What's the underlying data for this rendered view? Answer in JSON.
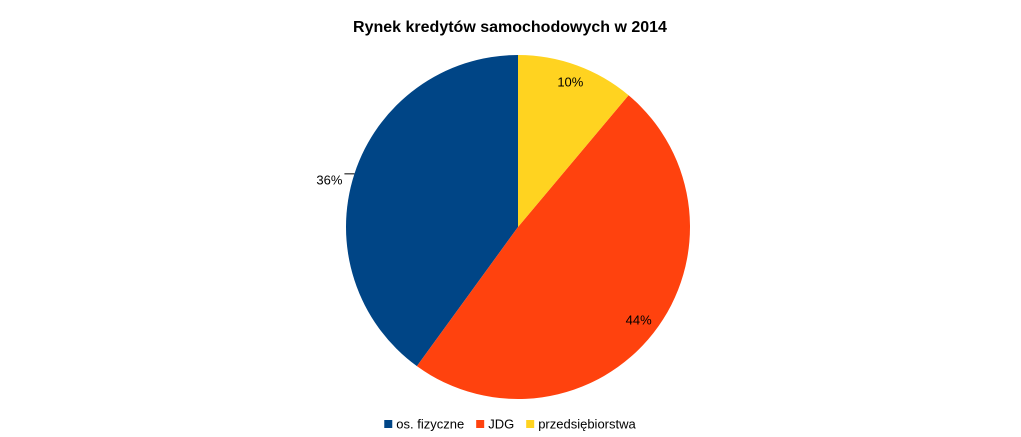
{
  "chart_data": {
    "type": "pie",
    "title": "Rynek kredytów samochodowych w 2014",
    "categories": [
      "os. fizyczne",
      "JDG",
      "przedsiębiorstwa"
    ],
    "values": [
      36,
      44,
      10
    ],
    "value_labels": [
      "36%",
      "44%",
      "10%"
    ],
    "colors": [
      "#004586",
      "#ff420e",
      "#ffd320"
    ],
    "legend": "bottom"
  }
}
